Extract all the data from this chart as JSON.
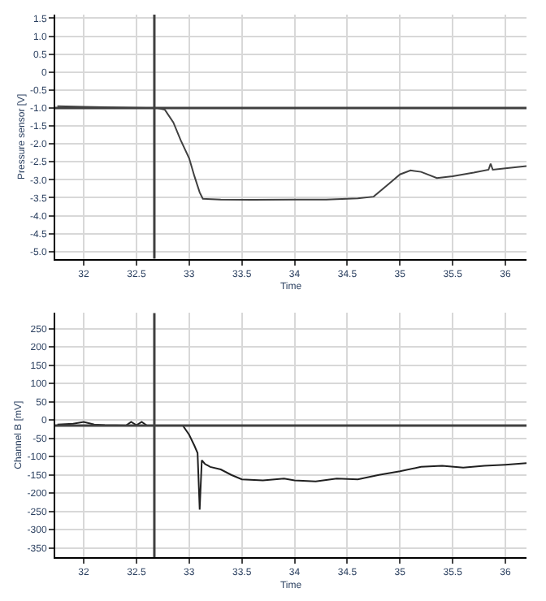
{
  "chart_data": [
    {
      "type": "line",
      "xlabel": "Time",
      "ylabel": "Pressure sensor [V]",
      "xlim": [
        31.73,
        36.2
      ],
      "ylim": [
        -5.2,
        1.6
      ],
      "xticks": [
        32,
        32.5,
        33,
        33.5,
        34,
        34.5,
        35,
        35.5,
        36
      ],
      "yticks": [
        {
          "value": 1.5,
          "label": "1.5"
        },
        {
          "value": 1,
          "label": "1.0"
        },
        {
          "value": 0.5,
          "label": "0.5"
        },
        0,
        -0.5,
        {
          "value": -1,
          "label": "-1.0"
        },
        -1.5,
        {
          "value": -2,
          "label": "-2.0"
        },
        -2.5,
        {
          "value": -3,
          "label": "-3.0"
        },
        -3.5,
        {
          "value": -4,
          "label": "-4.0"
        },
        -4.5,
        {
          "value": -5,
          "label": "-5.0"
        }
      ],
      "grid": true,
      "series": [
        {
          "color": "#404040",
          "x": [
            31.75,
            32.0,
            32.2,
            32.4,
            32.6,
            32.7,
            32.77,
            32.85,
            32.92,
            33.0,
            33.05,
            33.1,
            33.13,
            33.3,
            33.6,
            34.0,
            34.3,
            34.6,
            34.75,
            34.9,
            35.0,
            35.1,
            35.2,
            35.35,
            35.5,
            35.7,
            35.84,
            35.86,
            35.88,
            36.0,
            36.2
          ],
          "values": [
            -0.95,
            -0.97,
            -0.98,
            -0.99,
            -1.0,
            -1.0,
            -1.05,
            -1.4,
            -1.9,
            -2.4,
            -2.9,
            -3.35,
            -3.53,
            -3.55,
            -3.56,
            -3.55,
            -3.55,
            -3.52,
            -3.47,
            -3.1,
            -2.85,
            -2.74,
            -2.78,
            -2.95,
            -2.9,
            -2.8,
            -2.72,
            -2.55,
            -2.72,
            -2.68,
            -2.62
          ]
        }
      ],
      "ref_lines": [
        {
          "axis": "x",
          "value": 32.67,
          "color": "#404040"
        },
        {
          "axis": "y",
          "value": -1.0,
          "color": "#404040"
        }
      ]
    },
    {
      "type": "line",
      "xlabel": "Time",
      "ylabel": "Channel B [mV]",
      "xlim": [
        31.73,
        36.2
      ],
      "ylim": [
        -375,
        293
      ],
      "xticks": [
        32,
        32.5,
        33,
        33.5,
        34,
        34.5,
        35,
        35.5,
        36
      ],
      "yticks": [
        -350,
        -300,
        -250,
        -200,
        -150,
        -100,
        -50,
        0,
        50,
        100,
        150,
        200,
        250
      ],
      "grid": true,
      "series": [
        {
          "color": "#202020",
          "x": [
            31.75,
            31.9,
            32.0,
            32.1,
            32.2,
            32.4,
            32.45,
            32.5,
            32.55,
            32.6,
            32.7,
            32.8,
            32.94,
            33.0,
            33.05,
            33.08,
            33.1,
            33.12,
            33.15,
            33.2,
            33.3,
            33.4,
            33.5,
            33.7,
            33.9,
            34.0,
            34.2,
            34.4,
            34.6,
            34.8,
            35.0,
            35.2,
            35.4,
            35.6,
            35.8,
            36.0,
            36.2
          ],
          "values": [
            -12,
            -10,
            -5,
            -12,
            -14,
            -15,
            -5,
            -14,
            -5,
            -15,
            -15,
            -15,
            -15,
            -40,
            -70,
            -90,
            -245,
            -110,
            -120,
            -128,
            -135,
            -150,
            -162,
            -165,
            -160,
            -165,
            -168,
            -160,
            -162,
            -150,
            -140,
            -128,
            -125,
            -130,
            -125,
            -122,
            -118
          ]
        }
      ],
      "ref_lines": [
        {
          "axis": "x",
          "value": 32.67,
          "color": "#404040"
        },
        {
          "axis": "y",
          "value": -15,
          "color": "#404040"
        }
      ]
    }
  ]
}
